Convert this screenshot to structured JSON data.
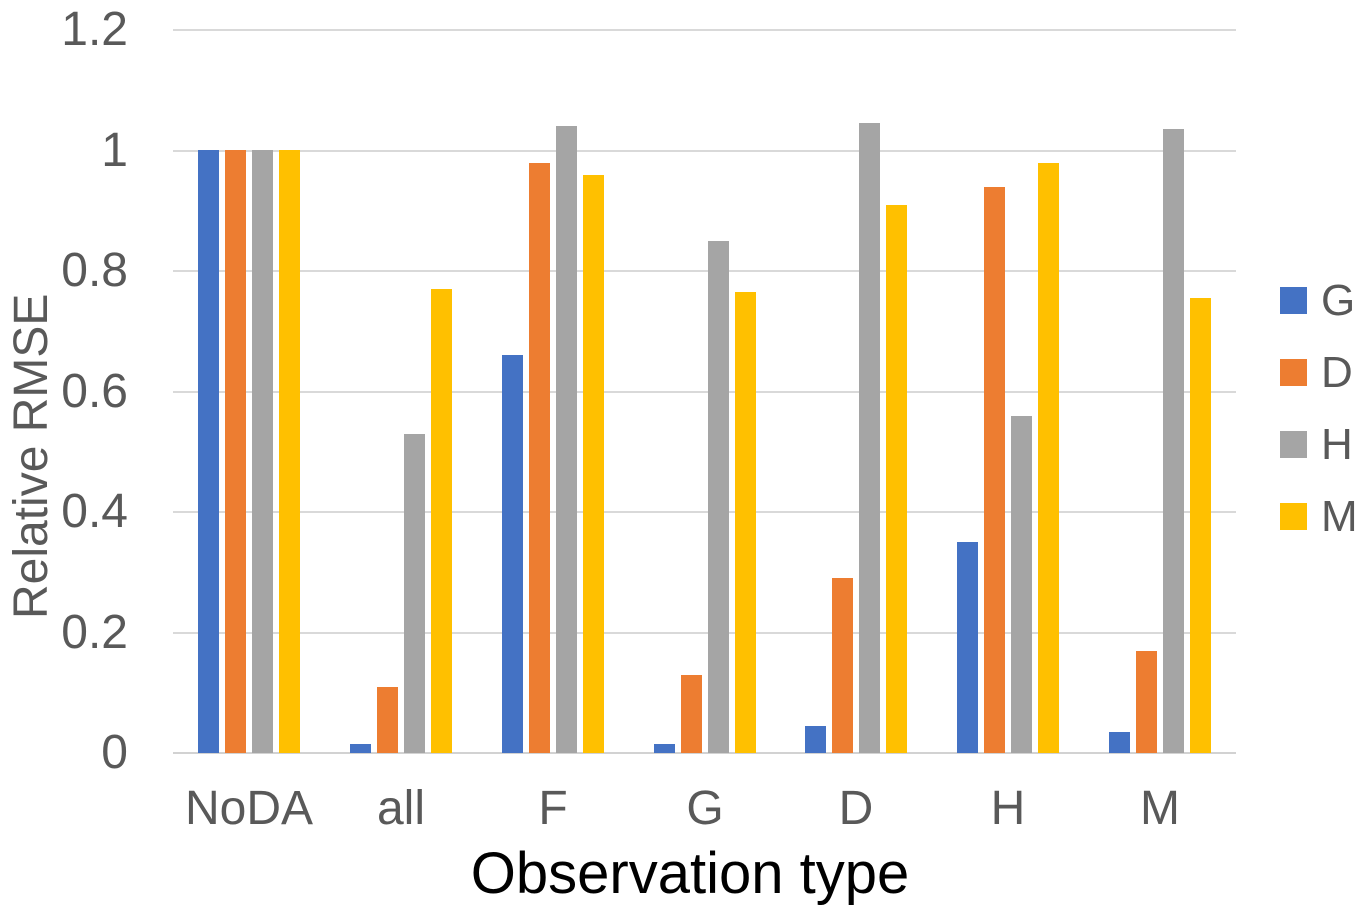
{
  "chart_data": {
    "type": "bar",
    "title": "",
    "xlabel": "Observation type",
    "ylabel": "Relative RMSE",
    "categories": [
      "NoDA",
      "all",
      "F",
      "G",
      "D",
      "H",
      "M"
    ],
    "series": [
      {
        "name": "G",
        "color": "#4472C4",
        "values": [
          1.0,
          0.015,
          0.66,
          0.015,
          0.045,
          0.35,
          0.035
        ]
      },
      {
        "name": "D",
        "color": "#ED7D31",
        "values": [
          1.0,
          0.11,
          0.98,
          0.13,
          0.29,
          0.94,
          0.17
        ]
      },
      {
        "name": "H",
        "color": "#A5A5A5",
        "values": [
          1.0,
          0.53,
          1.04,
          0.85,
          1.045,
          0.56,
          1.035
        ]
      },
      {
        "name": "M",
        "color": "#FFC000",
        "values": [
          1.0,
          0.77,
          0.96,
          0.765,
          0.91,
          0.98,
          0.755
        ]
      }
    ],
    "ylim": [
      0,
      1.2
    ],
    "yticks": [
      0,
      0.2,
      0.4,
      0.6,
      0.8,
      1,
      1.2
    ],
    "ytick_labels": [
      "0",
      "0.2",
      "0.4",
      "0.6",
      "0.8",
      "1",
      "1.2"
    ],
    "grid": true,
    "legend_position": "right",
    "colors": {
      "tick_text": "#595959",
      "grid": "#D9D9D9",
      "x_title_text": "#000000",
      "background": "#FFFFFF"
    }
  }
}
